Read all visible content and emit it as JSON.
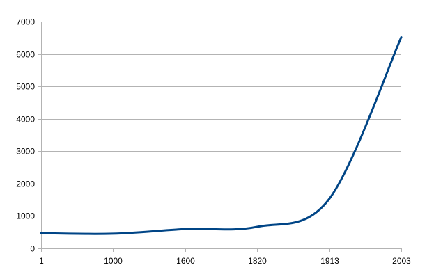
{
  "chart_data": {
    "type": "line",
    "title": "",
    "xlabel": "",
    "ylabel": "",
    "categories": [
      "1",
      "1000",
      "1600",
      "1820",
      "1913",
      "2003"
    ],
    "series": [
      {
        "values": [
          467,
          453,
          596,
          667,
          1526,
          6516
        ]
      }
    ],
    "ylim": [
      0,
      7000
    ],
    "yticks": [
      0,
      1000,
      2000,
      3000,
      4000,
      5000,
      6000,
      7000
    ],
    "smooth": true,
    "grid": true,
    "legend": "none",
    "colors": {
      "series": "#004586",
      "grid": "#b3b3b3",
      "axis": "#b3b3b3",
      "text": "#000000"
    }
  }
}
